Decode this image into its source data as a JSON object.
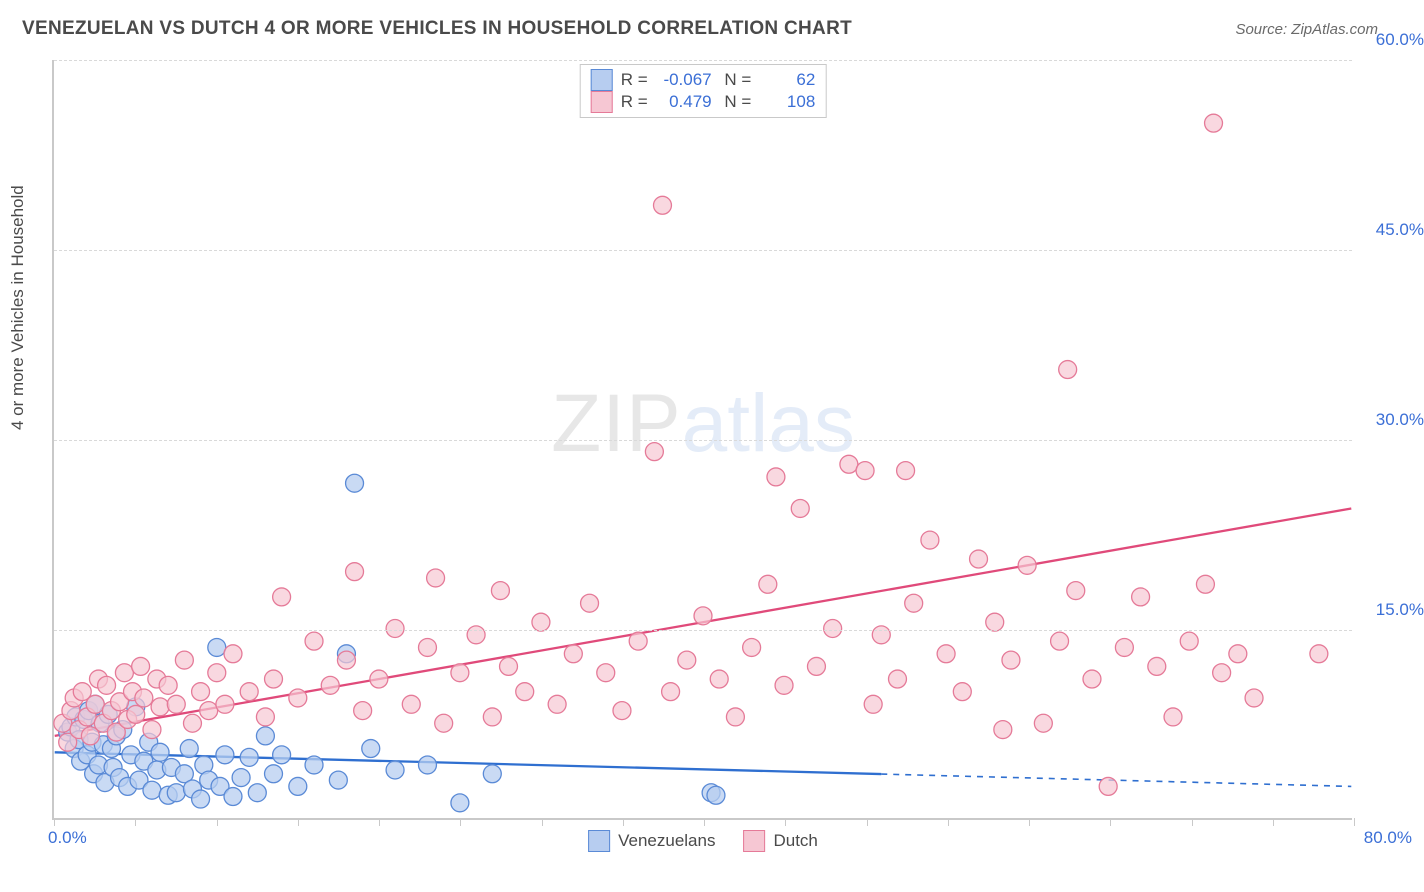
{
  "header": {
    "title": "VENEZUELAN VS DUTCH 4 OR MORE VEHICLES IN HOUSEHOLD CORRELATION CHART",
    "source": "Source: ZipAtlas.com"
  },
  "chart": {
    "type": "scatter",
    "y_axis_label": "4 or more Vehicles in Household",
    "xlim": [
      0,
      80
    ],
    "ylim": [
      0,
      60
    ],
    "x_ticks": [
      0,
      5,
      10,
      15,
      20,
      25,
      30,
      35,
      40,
      45,
      50,
      55,
      60,
      65,
      70,
      75,
      80
    ],
    "y_gridlines": [
      15,
      30,
      45,
      60
    ],
    "y_tick_labels": [
      "15.0%",
      "30.0%",
      "45.0%",
      "60.0%"
    ],
    "origin_label": "0.0%",
    "xmax_label": "80.0%",
    "axis_color": "#c9c9c9",
    "grid_color": "#d9d9d9",
    "tick_label_color": "#3b6fd6",
    "label_fontsize": 17,
    "background_color": "#ffffff",
    "watermark": {
      "part1": "ZIP",
      "part2": "atlas"
    },
    "series": [
      {
        "id": "venezuelans",
        "label": "Venezuelans",
        "marker_fill": "#b7cdf0",
        "marker_stroke": "#5a8ad6",
        "marker_radius": 9,
        "marker_opacity": 0.75,
        "trend": {
          "stroke": "#2f6fd0",
          "width": 2.3,
          "y_intercept": 5.2,
          "y_at_xmax": 2.5,
          "solid_until_x": 51,
          "dashed_after": true
        },
        "stats": {
          "R": "-0.067",
          "N": "62"
        },
        "points": [
          [
            0.8,
            6.8
          ],
          [
            1.0,
            7.2
          ],
          [
            1.2,
            5.5
          ],
          [
            1.3,
            8.0
          ],
          [
            1.5,
            6.2
          ],
          [
            1.6,
            4.5
          ],
          [
            1.8,
            7.8
          ],
          [
            2.0,
            5.0
          ],
          [
            2.1,
            8.5
          ],
          [
            2.3,
            6.0
          ],
          [
            2.4,
            3.5
          ],
          [
            2.5,
            9.0
          ],
          [
            2.7,
            4.2
          ],
          [
            2.8,
            7.5
          ],
          [
            3.0,
            5.8
          ],
          [
            3.1,
            2.8
          ],
          [
            3.3,
            8.2
          ],
          [
            3.5,
            5.5
          ],
          [
            3.6,
            4.0
          ],
          [
            3.8,
            6.5
          ],
          [
            4.0,
            3.2
          ],
          [
            4.2,
            7.0
          ],
          [
            4.5,
            2.5
          ],
          [
            4.7,
            5.0
          ],
          [
            5.0,
            8.8
          ],
          [
            5.2,
            3.0
          ],
          [
            5.5,
            4.5
          ],
          [
            5.8,
            6.0
          ],
          [
            6.0,
            2.2
          ],
          [
            6.3,
            3.8
          ],
          [
            6.5,
            5.2
          ],
          [
            7.0,
            1.8
          ],
          [
            7.2,
            4.0
          ],
          [
            7.5,
            2.0
          ],
          [
            8.0,
            3.5
          ],
          [
            8.3,
            5.5
          ],
          [
            8.5,
            2.3
          ],
          [
            9.0,
            1.5
          ],
          [
            9.2,
            4.2
          ],
          [
            9.5,
            3.0
          ],
          [
            10.0,
            13.5
          ],
          [
            10.2,
            2.5
          ],
          [
            10.5,
            5.0
          ],
          [
            11.0,
            1.7
          ],
          [
            11.5,
            3.2
          ],
          [
            12.0,
            4.8
          ],
          [
            12.5,
            2.0
          ],
          [
            13.0,
            6.5
          ],
          [
            13.5,
            3.5
          ],
          [
            14.0,
            5.0
          ],
          [
            15.0,
            2.5
          ],
          [
            16.0,
            4.2
          ],
          [
            17.5,
            3.0
          ],
          [
            18.0,
            13.0
          ],
          [
            18.5,
            26.5
          ],
          [
            19.5,
            5.5
          ],
          [
            21.0,
            3.8
          ],
          [
            23.0,
            4.2
          ],
          [
            25.0,
            1.2
          ],
          [
            27.0,
            3.5
          ],
          [
            40.5,
            2.0
          ],
          [
            40.8,
            1.8
          ]
        ]
      },
      {
        "id": "dutch",
        "label": "Dutch",
        "marker_fill": "#f6c7d3",
        "marker_stroke": "#e57a98",
        "marker_radius": 9,
        "marker_opacity": 0.7,
        "trend": {
          "stroke": "#e04a7a",
          "width": 2.3,
          "y_intercept": 6.5,
          "y_at_xmax": 24.5,
          "solid_until_x": 80,
          "dashed_after": false
        },
        "stats": {
          "R": "0.479",
          "N": "108"
        },
        "points": [
          [
            0.5,
            7.5
          ],
          [
            0.8,
            6.0
          ],
          [
            1.0,
            8.5
          ],
          [
            1.2,
            9.5
          ],
          [
            1.5,
            7.0
          ],
          [
            1.7,
            10.0
          ],
          [
            2.0,
            8.0
          ],
          [
            2.2,
            6.5
          ],
          [
            2.5,
            9.0
          ],
          [
            2.7,
            11.0
          ],
          [
            3.0,
            7.5
          ],
          [
            3.2,
            10.5
          ],
          [
            3.5,
            8.5
          ],
          [
            3.8,
            6.8
          ],
          [
            4.0,
            9.2
          ],
          [
            4.3,
            11.5
          ],
          [
            4.5,
            7.8
          ],
          [
            4.8,
            10.0
          ],
          [
            5.0,
            8.2
          ],
          [
            5.3,
            12.0
          ],
          [
            5.5,
            9.5
          ],
          [
            6.0,
            7.0
          ],
          [
            6.3,
            11.0
          ],
          [
            6.5,
            8.8
          ],
          [
            7.0,
            10.5
          ],
          [
            7.5,
            9.0
          ],
          [
            8.0,
            12.5
          ],
          [
            8.5,
            7.5
          ],
          [
            9.0,
            10.0
          ],
          [
            9.5,
            8.5
          ],
          [
            10.0,
            11.5
          ],
          [
            10.5,
            9.0
          ],
          [
            11.0,
            13.0
          ],
          [
            12.0,
            10.0
          ],
          [
            13.0,
            8.0
          ],
          [
            13.5,
            11.0
          ],
          [
            14.0,
            17.5
          ],
          [
            15.0,
            9.5
          ],
          [
            16.0,
            14.0
          ],
          [
            17.0,
            10.5
          ],
          [
            18.0,
            12.5
          ],
          [
            18.5,
            19.5
          ],
          [
            19.0,
            8.5
          ],
          [
            20.0,
            11.0
          ],
          [
            21.0,
            15.0
          ],
          [
            22.0,
            9.0
          ],
          [
            23.0,
            13.5
          ],
          [
            23.5,
            19.0
          ],
          [
            24.0,
            7.5
          ],
          [
            25.0,
            11.5
          ],
          [
            26.0,
            14.5
          ],
          [
            27.0,
            8.0
          ],
          [
            27.5,
            18.0
          ],
          [
            28.0,
            12.0
          ],
          [
            29.0,
            10.0
          ],
          [
            30.0,
            15.5
          ],
          [
            31.0,
            9.0
          ],
          [
            32.0,
            13.0
          ],
          [
            33.0,
            17.0
          ],
          [
            34.0,
            11.5
          ],
          [
            35.0,
            8.5
          ],
          [
            36.0,
            14.0
          ],
          [
            37.0,
            29.0
          ],
          [
            37.5,
            48.5
          ],
          [
            38.0,
            10.0
          ],
          [
            39.0,
            12.5
          ],
          [
            40.0,
            16.0
          ],
          [
            41.0,
            11.0
          ],
          [
            42.0,
            8.0
          ],
          [
            43.0,
            13.5
          ],
          [
            44.0,
            18.5
          ],
          [
            44.5,
            27.0
          ],
          [
            45.0,
            10.5
          ],
          [
            46.0,
            24.5
          ],
          [
            47.0,
            12.0
          ],
          [
            48.0,
            15.0
          ],
          [
            49.0,
            28.0
          ],
          [
            50.0,
            27.5
          ],
          [
            50.5,
            9.0
          ],
          [
            51.0,
            14.5
          ],
          [
            52.0,
            11.0
          ],
          [
            52.5,
            27.5
          ],
          [
            53.0,
            17.0
          ],
          [
            54.0,
            22.0
          ],
          [
            55.0,
            13.0
          ],
          [
            56.0,
            10.0
          ],
          [
            57.0,
            20.5
          ],
          [
            58.0,
            15.5
          ],
          [
            58.5,
            7.0
          ],
          [
            59.0,
            12.5
          ],
          [
            60.0,
            20.0
          ],
          [
            61.0,
            7.5
          ],
          [
            62.0,
            14.0
          ],
          [
            62.5,
            35.5
          ],
          [
            63.0,
            18.0
          ],
          [
            64.0,
            11.0
          ],
          [
            65.0,
            2.5
          ],
          [
            66.0,
            13.5
          ],
          [
            67.0,
            17.5
          ],
          [
            68.0,
            12.0
          ],
          [
            69.0,
            8.0
          ],
          [
            70.0,
            14.0
          ],
          [
            71.0,
            18.5
          ],
          [
            71.5,
            55.0
          ],
          [
            72.0,
            11.5
          ],
          [
            73.0,
            13.0
          ],
          [
            74.0,
            9.5
          ],
          [
            78.0,
            13.0
          ]
        ]
      }
    ],
    "legend": {
      "items": [
        {
          "label": "Venezuelans",
          "fill": "#b7cdf0",
          "stroke": "#5a8ad6"
        },
        {
          "label": "Dutch",
          "fill": "#f6c7d3",
          "stroke": "#e57a98"
        }
      ]
    }
  }
}
